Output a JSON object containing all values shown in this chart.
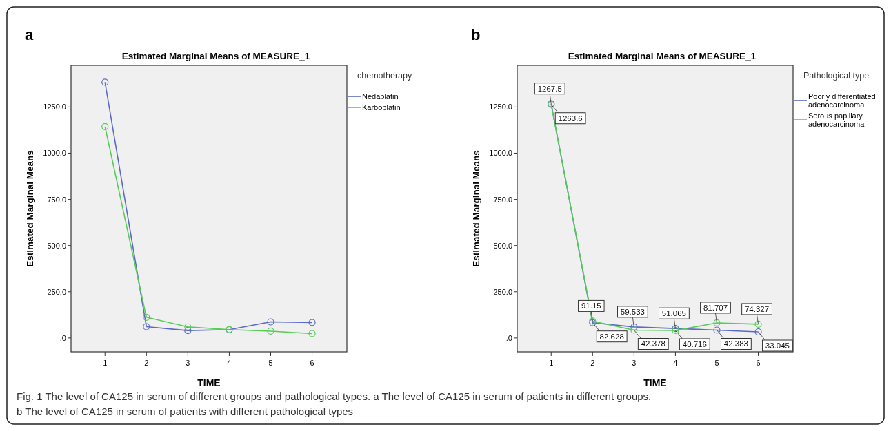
{
  "chart_data": [
    {
      "type": "line",
      "title": "Estimated Marginal Means of MEASURE_1",
      "xlabel": "TIME",
      "ylabel": "Estimated Marginal Means",
      "legend_title": "chemotherapy",
      "legend": "right",
      "marker": "circle",
      "line_style": "solid",
      "grid": false,
      "annotations": [
        "a",
        "Fig. 1 The level of CA125 in serum of different groups and pathological types. a The level of CA125 in serum of patients in different groups.",
        "b The level of CA125 in serum of patients with different pathological types"
      ],
      "x": [
        1,
        2,
        3,
        4,
        5,
        6
      ],
      "xlim": [
        0.18,
        6.84
      ],
      "xticks": [
        1,
        2,
        3,
        4,
        5,
        6
      ],
      "ylim": [
        -75,
        1475
      ],
      "yticks": [
        {
          "value": 0,
          "label": ".0"
        },
        {
          "value": 250,
          "label": "250.0"
        },
        {
          "value": 500,
          "label": "500.0"
        },
        {
          "value": 750,
          "label": "750.0"
        },
        {
          "value": 1000,
          "label": "1000.0"
        },
        {
          "value": 1250,
          "label": "1250.0"
        }
      ],
      "series": [
        {
          "name": "Nedaplatin",
          "color": "#5b6bc4",
          "values": [
            1384,
            61,
            40,
            45,
            87,
            84
          ]
        },
        {
          "name": "Karboplatin",
          "color": "#55cc55",
          "values": [
            1144,
            112,
            60,
            45,
            37,
            24
          ]
        }
      ]
    },
    {
      "type": "line",
      "title": "Estimated Marginal Means of MEASURE_1",
      "xlabel": "TIME",
      "ylabel": "Estimated Marginal Means",
      "legend_title": "Pathological type",
      "legend": "right",
      "marker": "circle",
      "line_style": "solid",
      "grid": false,
      "annotations": [
        "b"
      ],
      "x": [
        1,
        2,
        3,
        4,
        5,
        6
      ],
      "xlim": [
        0.18,
        6.84
      ],
      "xticks": [
        1,
        2,
        3,
        4,
        5,
        6
      ],
      "ylim": [
        -75,
        1475
      ],
      "yticks": [
        {
          "value": 0,
          "label": ".0"
        },
        {
          "value": 250,
          "label": "250.0"
        },
        {
          "value": 500,
          "label": "500.0"
        },
        {
          "value": 750,
          "label": "750.0"
        },
        {
          "value": 1000,
          "label": "1000.0"
        },
        {
          "value": 1250,
          "label": "1250.0"
        }
      ],
      "series": [
        {
          "name": "Poorly differentiated adenocarcinoma",
          "color": "#5b6bc4",
          "values": [
            1267.5,
            82.628,
            59.533,
            51.065,
            42.383,
            33.045
          ],
          "value_labels": [
            "1267.5",
            "82.628",
            "59.533",
            "51.065",
            "42.383",
            "33.045"
          ]
        },
        {
          "name": "Serous papillary adenocarcinoma",
          "color": "#55cc55",
          "values": [
            1263.6,
            91.15,
            42.378,
            40.716,
            81.707,
            74.327
          ],
          "value_labels": [
            "1263.6",
            "91.15",
            "42.378",
            "40.716",
            "81.707",
            "74.327"
          ]
        }
      ]
    }
  ]
}
